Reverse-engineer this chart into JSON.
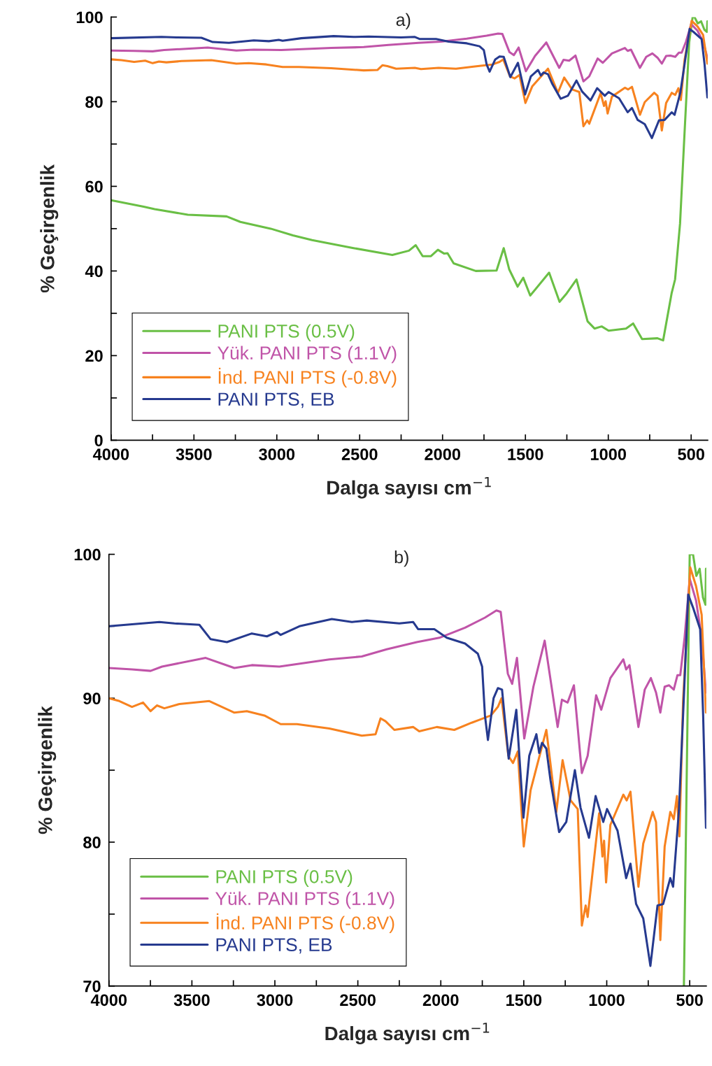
{
  "chart_data": [
    {
      "type": "line",
      "title": "a)",
      "xlabel": "Dalga sayısı cm$^{−1}$",
      "ylabel": "% Geçirgenlik",
      "xlim": [
        4000,
        400
      ],
      "ylim": [
        0,
        100
      ],
      "xticks": [
        4000,
        {
          "value": 3750,
          "label": null
        },
        3500,
        {
          "value": 3250,
          "label": null
        },
        3000,
        {
          "value": 2750,
          "label": null
        },
        2500,
        {
          "value": 2250,
          "label": null
        },
        2000,
        {
          "value": 1750,
          "label": null
        },
        1500,
        {
          "value": 1250,
          "label": null
        },
        1000,
        {
          "value": 750,
          "label": null
        },
        500
      ],
      "yticks": [
        0,
        {
          "value": 10,
          "label": null
        },
        20,
        {
          "value": 30,
          "label": null
        },
        40,
        {
          "value": 50,
          "label": null
        },
        60,
        {
          "value": 70,
          "label": null
        },
        80,
        {
          "value": 90,
          "label": null
        },
        100
      ],
      "legend": "bottom left",
      "grid": false,
      "series": [
        {
          "name": "PANI PTS (0.5V)",
          "color": "#6abf45",
          "x": [
            4000,
            3803,
            3737,
            3537,
            3303,
            3220,
            3037,
            2903,
            2787,
            2537,
            2303,
            2203,
            2162,
            2120,
            2070,
            2028,
            1990,
            1970,
            1933,
            1800,
            1674,
            1631,
            1598,
            1547,
            1513,
            1471,
            1357,
            1294,
            1251,
            1192,
            1125,
            1083,
            1040,
            998,
            893,
            850,
            796,
            703,
            669,
            618,
            597,
            567,
            542,
            512,
            491,
            480,
            460,
            440,
            420,
            405,
            402
          ],
          "values": [
            56.7,
            55.2,
            54.6,
            53.3,
            52.9,
            51.6,
            50.0,
            48.4,
            47.3,
            45.4,
            43.8,
            44.8,
            46.1,
            43.5,
            43.5,
            45.0,
            44.1,
            44.2,
            41.8,
            40.0,
            40.1,
            45.4,
            40.4,
            36.3,
            38.4,
            34.2,
            39.6,
            32.7,
            34.7,
            38.0,
            28.1,
            26.4,
            26.9,
            25.9,
            26.4,
            27.6,
            23.9,
            24.1,
            23.6,
            34.7,
            38.0,
            51.2,
            71.0,
            94.0,
            100,
            100,
            98.5,
            99,
            97,
            96.5,
            99
          ]
        },
        {
          "name": "Yük. PANI PTS (1.1V)",
          "color": "#c054a8",
          "x": [
            4000,
            3861,
            3749,
            3680,
            3417,
            3244,
            3139,
            2973,
            2672,
            2476,
            2326,
            2145,
            2009,
            1854,
            1734,
            1665,
            1639,
            1596,
            1570,
            1541,
            1497,
            1442,
            1374,
            1296,
            1270,
            1236,
            1198,
            1150,
            1115,
            1064,
            1033,
            978,
            900,
            883,
            863,
            809,
            771,
            734,
            703,
            677,
            651,
            625,
            596,
            574,
            557,
            531,
            500,
            462,
            428,
            402
          ],
          "values": [
            92.1,
            92.0,
            91.9,
            92.2,
            92.8,
            92.1,
            92.3,
            92.2,
            92.7,
            92.9,
            93.4,
            93.9,
            94.2,
            94.9,
            95.6,
            96.1,
            96.0,
            91.7,
            91.0,
            92.8,
            87.2,
            90.8,
            94.0,
            88.0,
            89.9,
            89.7,
            90.9,
            84.8,
            86.0,
            90.2,
            89.2,
            91.4,
            92.7,
            92.0,
            92.3,
            88.0,
            90.6,
            91.4,
            90.4,
            89.0,
            90.8,
            90.9,
            90.6,
            91.6,
            91.6,
            94.2,
            98.3,
            96.8,
            94.2,
            90.4
          ]
        },
        {
          "name": "İnd. PANI PTS (-0.8V)",
          "color": "#f7821f",
          "x": [
            4000,
            3937,
            3861,
            3794,
            3749,
            3711,
            3666,
            3575,
            3395,
            3244,
            3169,
            3063,
            2965,
            2867,
            2672,
            2476,
            2393,
            2363,
            2333,
            2280,
            2167,
            2130,
            2024,
            1919,
            1814,
            1768,
            1699,
            1656,
            1634,
            1593,
            1565,
            1536,
            1500,
            1459,
            1364,
            1304,
            1266,
            1218,
            1175,
            1150,
            1127,
            1115,
            1046,
            1026,
            1016,
            1004,
            978,
            900,
            880,
            857,
            809,
            780,
            723,
            703,
            677,
            651,
            617,
            596,
            577,
            562,
            540,
            497,
            462,
            428,
            402
          ],
          "values": [
            90.0,
            89.8,
            89.4,
            89.7,
            89.1,
            89.5,
            89.3,
            89.6,
            89.8,
            89.0,
            89.1,
            88.8,
            88.2,
            88.2,
            87.9,
            87.4,
            87.5,
            88.6,
            88.4,
            87.8,
            88.0,
            87.7,
            88.0,
            87.8,
            88.3,
            88.5,
            88.8,
            89.4,
            90.0,
            86.0,
            85.5,
            86.3,
            79.7,
            83.6,
            87.8,
            82.1,
            85.7,
            82.9,
            82.3,
            74.2,
            75.6,
            74.8,
            82.0,
            79.0,
            80.1,
            77.2,
            81.2,
            83.3,
            82.9,
            83.5,
            76.9,
            79.9,
            82.1,
            81.4,
            73.2,
            79.7,
            82.1,
            81.6,
            83.2,
            80.4,
            89.8,
            99.1,
            97.8,
            95.8,
            89.0
          ]
        },
        {
          "name": "PANI PTS, EB",
          "color": "#263a8f",
          "x": [
            4000,
            3696,
            3605,
            3455,
            3387,
            3289,
            3139,
            3048,
            2988,
            2965,
            2852,
            2657,
            2536,
            2446,
            2250,
            2167,
            2137,
            2039,
            1964,
            1854,
            1777,
            1751,
            1734,
            1716,
            1682,
            1656,
            1631,
            1591,
            1545,
            1502,
            1467,
            1424,
            1407,
            1390,
            1364,
            1339,
            1287,
            1244,
            1192,
            1158,
            1107,
            1067,
            1021,
            998,
            935,
            883,
            857,
            823,
            780,
            737,
            694,
            660,
            617,
            600,
            565,
            540,
            509,
            480,
            437,
            419,
            402
          ],
          "values": [
            95.0,
            95.3,
            95.2,
            95.1,
            94.1,
            93.9,
            94.5,
            94.3,
            94.6,
            94.4,
            95.0,
            95.5,
            95.3,
            95.4,
            95.2,
            95.3,
            94.8,
            94.8,
            94.2,
            93.8,
            93.1,
            92.2,
            88.8,
            87.1,
            90.0,
            90.7,
            90.6,
            85.8,
            89.2,
            81.7,
            86.0,
            87.5,
            86.2,
            86.9,
            86.5,
            84.3,
            80.7,
            81.4,
            85.0,
            82.4,
            80.3,
            83.2,
            81.4,
            82.3,
            80.8,
            77.5,
            78.5,
            75.7,
            74.7,
            71.4,
            75.6,
            75.7,
            77.5,
            76.9,
            82.2,
            88.8,
            97.2,
            96.3,
            94.8,
            88.8,
            81.0
          ]
        }
      ]
    },
    {
      "type": "line",
      "title": "b)",
      "xlabel": "Dalga sayısı cm$^{−1}$",
      "ylabel": "% Geçirgenlik",
      "xlim": [
        4000,
        400
      ],
      "ylim": [
        70,
        100
      ],
      "xticks": [
        4000,
        {
          "value": 3750,
          "label": null
        },
        3500,
        {
          "value": 3250,
          "label": null
        },
        3000,
        {
          "value": 2750,
          "label": null
        },
        2500,
        {
          "value": 2250,
          "label": null
        },
        2000,
        {
          "value": 1750,
          "label": null
        },
        1500,
        {
          "value": 1250,
          "label": null
        },
        1000,
        {
          "value": 750,
          "label": null
        },
        500
      ],
      "yticks": [
        70,
        {
          "value": 75,
          "label": null
        },
        80,
        {
          "value": 85,
          "label": null
        },
        90,
        {
          "value": 95,
          "label": null
        },
        100
      ],
      "legend": "bottom left",
      "grid": false,
      "series": [
        {
          "name": "PANI PTS (0.5V)",
          "color": "#6abf45",
          "x": [
            535,
            500,
            480,
            460,
            440,
            420,
            405,
            402
          ],
          "values": [
            70,
            100,
            100,
            98.5,
            99,
            97,
            96.5,
            99
          ]
        },
        {
          "name": "Yük. PANI PTS (1.1V)",
          "color": "#c054a8",
          "x": [
            4000,
            3861,
            3749,
            3680,
            3417,
            3244,
            3139,
            2973,
            2672,
            2476,
            2326,
            2145,
            2009,
            1854,
            1734,
            1665,
            1639,
            1596,
            1570,
            1541,
            1497,
            1442,
            1374,
            1296,
            1270,
            1236,
            1198,
            1150,
            1115,
            1064,
            1033,
            978,
            900,
            883,
            863,
            809,
            771,
            734,
            703,
            677,
            651,
            625,
            596,
            574,
            557,
            531,
            500,
            462,
            428,
            402
          ],
          "values": [
            92.1,
            92.0,
            91.9,
            92.2,
            92.8,
            92.1,
            92.3,
            92.2,
            92.7,
            92.9,
            93.4,
            93.9,
            94.2,
            94.9,
            95.6,
            96.1,
            96.0,
            91.7,
            91.0,
            92.8,
            87.2,
            90.8,
            94.0,
            88.0,
            89.9,
            89.7,
            90.9,
            84.8,
            86.0,
            90.2,
            89.2,
            91.4,
            92.7,
            92.0,
            92.3,
            88.0,
            90.6,
            91.4,
            90.4,
            89.0,
            90.8,
            90.9,
            90.6,
            91.6,
            91.6,
            94.2,
            98.3,
            96.8,
            94.2,
            90.4
          ]
        },
        {
          "name": "İnd. PANI PTS (-0.8V)",
          "color": "#f7821f",
          "x": [
            4000,
            3937,
            3861,
            3794,
            3749,
            3711,
            3666,
            3575,
            3395,
            3244,
            3169,
            3063,
            2965,
            2867,
            2672,
            2476,
            2393,
            2363,
            2333,
            2280,
            2167,
            2130,
            2024,
            1919,
            1814,
            1768,
            1699,
            1656,
            1634,
            1593,
            1565,
            1536,
            1500,
            1459,
            1364,
            1304,
            1266,
            1218,
            1175,
            1150,
            1127,
            1115,
            1046,
            1026,
            1016,
            1004,
            978,
            900,
            880,
            857,
            809,
            780,
            723,
            703,
            677,
            651,
            617,
            596,
            577,
            562,
            540,
            497,
            462,
            428,
            402
          ],
          "values": [
            90.0,
            89.8,
            89.4,
            89.7,
            89.1,
            89.5,
            89.3,
            89.6,
            89.8,
            89.0,
            89.1,
            88.8,
            88.2,
            88.2,
            87.9,
            87.4,
            87.5,
            88.6,
            88.4,
            87.8,
            88.0,
            87.7,
            88.0,
            87.8,
            88.3,
            88.5,
            88.8,
            89.4,
            90.0,
            86.0,
            85.5,
            86.3,
            79.7,
            83.6,
            87.8,
            82.1,
            85.7,
            82.9,
            82.3,
            74.2,
            75.6,
            74.8,
            82.0,
            79.0,
            80.1,
            77.2,
            81.2,
            83.3,
            82.9,
            83.5,
            76.9,
            79.9,
            82.1,
            81.4,
            73.2,
            79.7,
            82.1,
            81.6,
            83.2,
            80.4,
            89.8,
            99.1,
            97.8,
            95.8,
            89.0
          ]
        },
        {
          "name": "PANI PTS, EB",
          "color": "#263a8f",
          "x": [
            4000,
            3696,
            3605,
            3455,
            3387,
            3289,
            3139,
            3048,
            2988,
            2965,
            2852,
            2657,
            2536,
            2446,
            2250,
            2167,
            2137,
            2039,
            1964,
            1854,
            1777,
            1751,
            1734,
            1716,
            1682,
            1656,
            1631,
            1591,
            1545,
            1502,
            1467,
            1424,
            1407,
            1390,
            1364,
            1339,
            1287,
            1244,
            1192,
            1158,
            1107,
            1067,
            1021,
            998,
            935,
            883,
            857,
            823,
            780,
            737,
            694,
            660,
            617,
            600,
            565,
            540,
            509,
            480,
            437,
            419,
            402
          ],
          "values": [
            95.0,
            95.3,
            95.2,
            95.1,
            94.1,
            93.9,
            94.5,
            94.3,
            94.6,
            94.4,
            95.0,
            95.5,
            95.3,
            95.4,
            95.2,
            95.3,
            94.8,
            94.8,
            94.2,
            93.8,
            93.1,
            92.2,
            88.8,
            87.1,
            90.0,
            90.7,
            90.6,
            85.8,
            89.2,
            81.7,
            86.0,
            87.5,
            86.2,
            86.9,
            86.5,
            84.3,
            80.7,
            81.4,
            85.0,
            82.4,
            80.3,
            83.2,
            81.4,
            82.3,
            80.8,
            77.5,
            78.5,
            75.7,
            74.7,
            71.4,
            75.6,
            75.7,
            77.5,
            76.9,
            82.2,
            88.8,
            97.2,
            96.3,
            94.8,
            88.8,
            81.0
          ]
        }
      ]
    }
  ]
}
